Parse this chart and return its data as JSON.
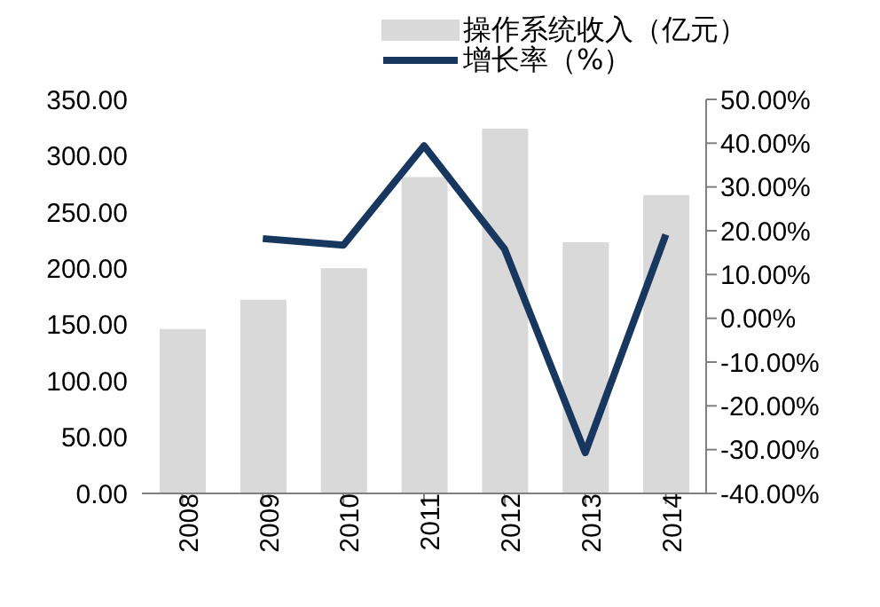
{
  "chart_data": {
    "type": "bar",
    "categories": [
      "2008",
      "2009",
      "2010",
      "2011",
      "2012",
      "2013",
      "2014"
    ],
    "series": [
      {
        "name": "操作系统收入（亿元）",
        "color": "#d9d9d9",
        "values": [
          146,
          172,
          200,
          281,
          324,
          223,
          265
        ]
      },
      {
        "name": "增长率（%）",
        "type": "line",
        "axis": "y2",
        "color": "#17375e",
        "values": [
          null,
          18.2,
          16.7,
          39.4,
          15.8,
          -30.7,
          19.1
        ]
      }
    ],
    "ylim": [
      0,
      350
    ],
    "yticks": [
      {
        "value": 0,
        "label": "0.00"
      },
      {
        "value": 50,
        "label": "50.00"
      },
      {
        "value": 100,
        "label": "100.00"
      },
      {
        "value": 150,
        "label": "150.00"
      },
      {
        "value": 200,
        "label": "200.00"
      },
      {
        "value": 250,
        "label": "250.00"
      },
      {
        "value": 300,
        "label": "300.00"
      },
      {
        "value": 350,
        "label": "350.00"
      }
    ],
    "y2lim": [
      -40,
      50
    ],
    "y2ticks": [
      {
        "value": -40,
        "label": "-40.00%"
      },
      {
        "value": -30,
        "label": "-30.00%"
      },
      {
        "value": -20,
        "label": "-20.00%"
      },
      {
        "value": -10,
        "label": "-10.00%"
      },
      {
        "value": 0,
        "label": "0.00%"
      },
      {
        "value": 10,
        "label": "10.00%"
      },
      {
        "value": 20,
        "label": "20.00%"
      },
      {
        "value": 30,
        "label": "30.00%"
      },
      {
        "value": 40,
        "label": "40.00%"
      },
      {
        "value": 50,
        "label": "50.00%"
      }
    ],
    "grid": false,
    "legend": "top",
    "marker": "none"
  }
}
